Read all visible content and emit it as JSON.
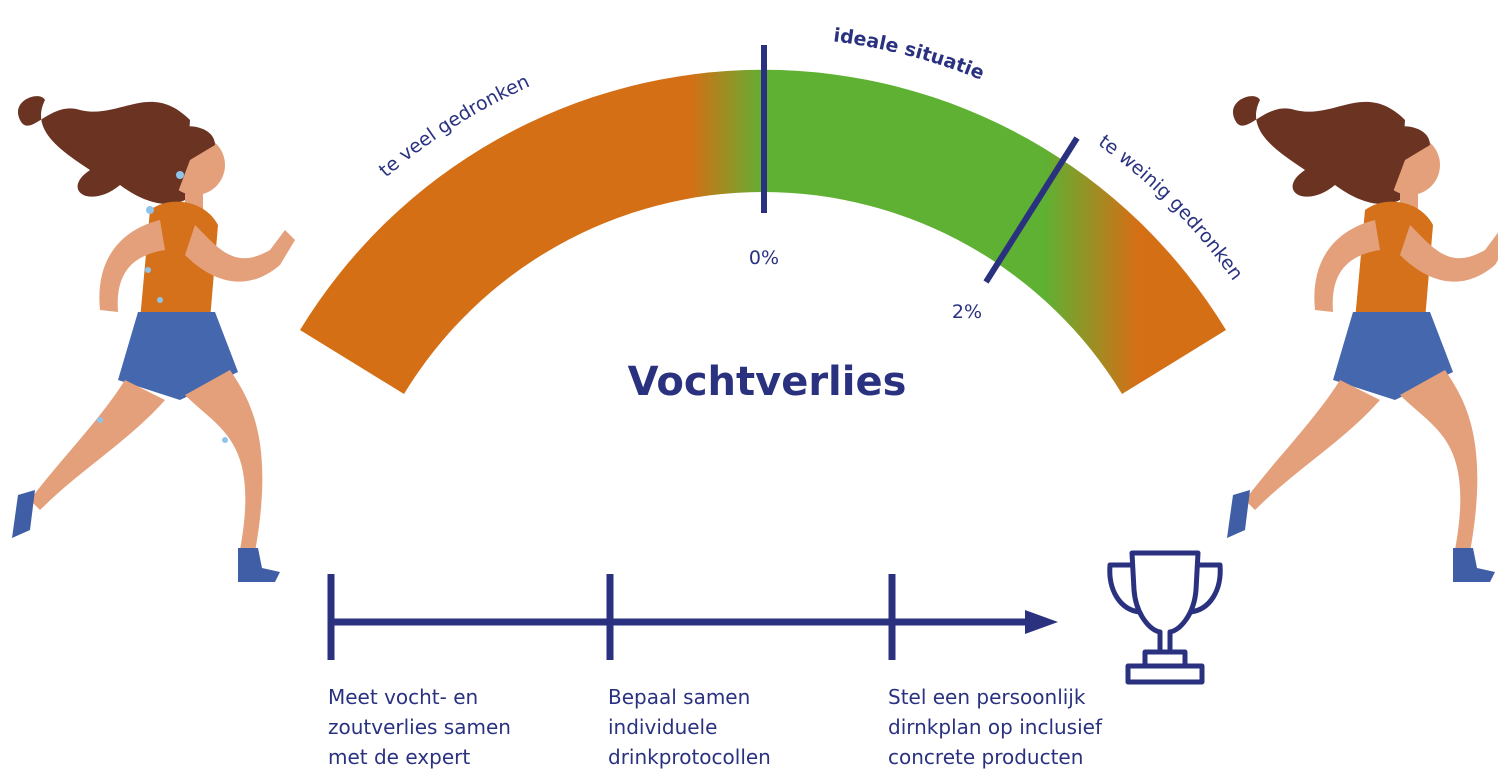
{
  "gauge": {
    "title": "Vochtverlies",
    "zones": [
      "te veel gedronken",
      "ideale situatie",
      "te weinig gedronken"
    ],
    "markers": [
      "0%",
      "2%"
    ]
  },
  "steps": [
    [
      "Meet vocht- en",
      "zoutverlies samen",
      "met de expert"
    ],
    [
      "Bepaal samen",
      "individuele",
      "drinkprotocollen"
    ],
    [
      "Stel een persoonlijk",
      "dirnkplan op inclusief",
      "concrete producten"
    ]
  ]
}
